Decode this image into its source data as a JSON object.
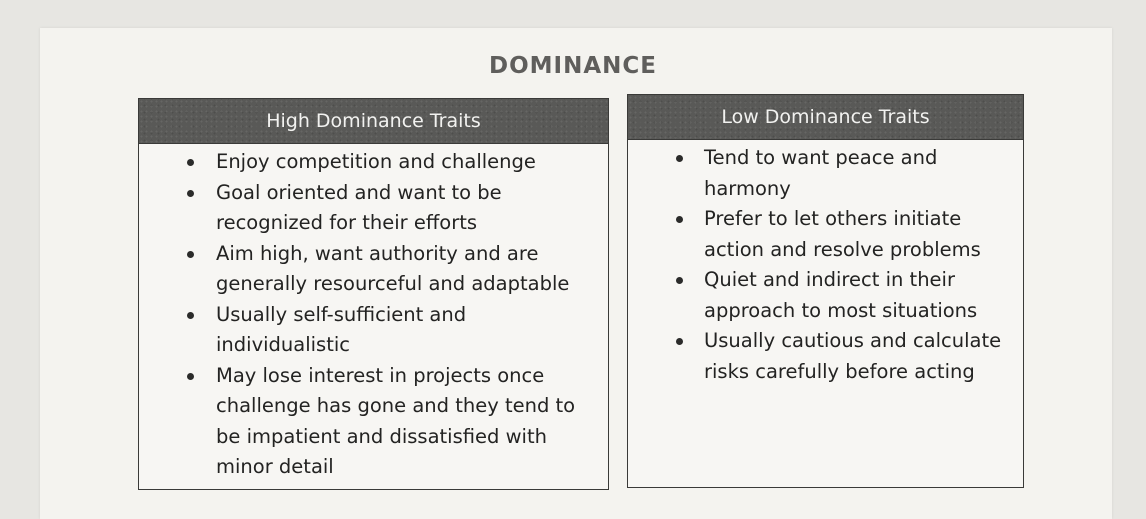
{
  "title": "DOMINANCE",
  "high": {
    "header": "High Dominance Traits",
    "traits": [
      "Enjoy competition and challenge",
      "Goal oriented and want to be recognized for their efforts",
      "Aim high, want authority and are generally resourceful and adaptable",
      "Usually self-sufficient and individualistic",
      "May lose interest in projects once challenge has gone and they tend to be impatient and dissatisfied with minor detail"
    ]
  },
  "low": {
    "header": "Low Dominance Traits",
    "traits": [
      "Tend to want peace and harmony",
      "Prefer to let others initiate action and resolve problems",
      "Quiet and indirect in their approach to most situations",
      "Usually cautious and calculate risks carefully before acting"
    ]
  }
}
